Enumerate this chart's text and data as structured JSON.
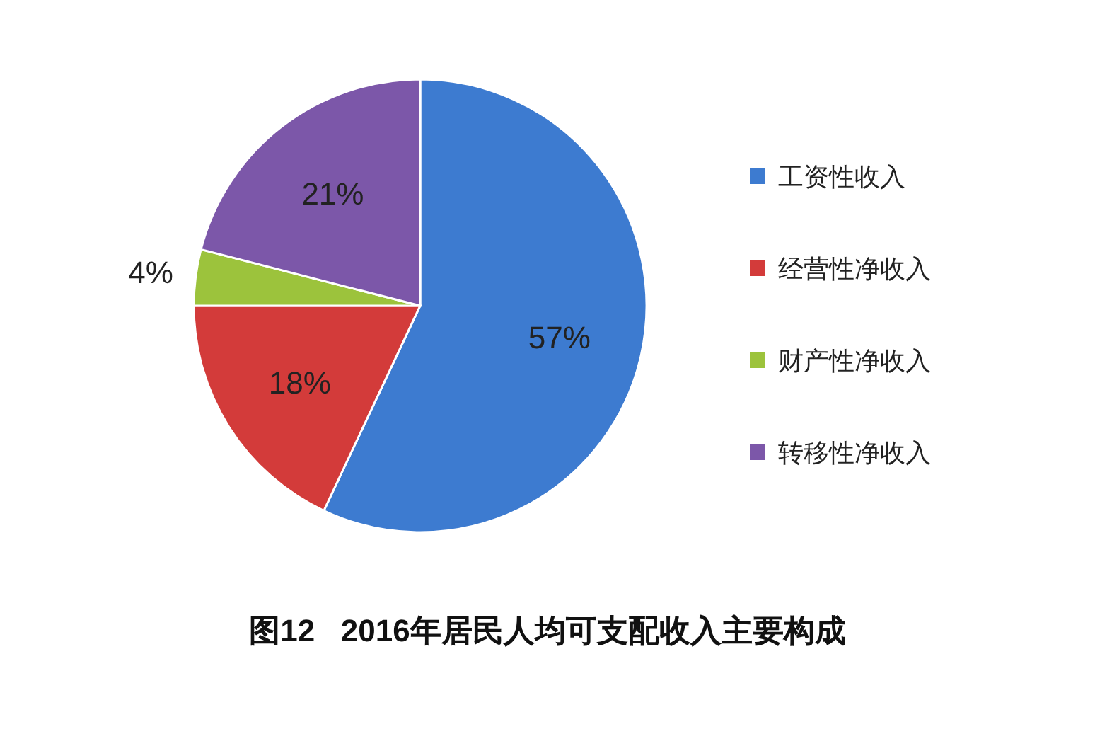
{
  "chart_data": {
    "type": "pie",
    "title": "图12   2016年居民人均可支配收入主要构成",
    "categories": [
      "工资性收入",
      "经营性净收入",
      "财产性净收入",
      "转移性净收入"
    ],
    "values": [
      57,
      18,
      4,
      21
    ],
    "colors": [
      "#3d7bd0",
      "#d33b3a",
      "#9cc33c",
      "#7c57a9"
    ],
    "value_labels": [
      "57%",
      "18%",
      "4%",
      "21%"
    ],
    "legend": "right"
  }
}
